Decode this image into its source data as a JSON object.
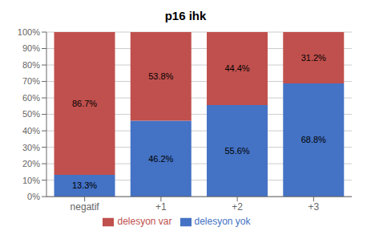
{
  "chart_data": {
    "type": "bar",
    "title": "p16 ihk",
    "categories": [
      "negatif",
      "+1",
      "+2",
      "+3"
    ],
    "series": [
      {
        "name": "delesyon yok",
        "color": "#4472C4",
        "values": [
          13.3,
          46.2,
          55.6,
          68.8
        ],
        "value_labels": [
          "13.3%",
          "46.2%",
          "55.6%",
          "68.8%"
        ]
      },
      {
        "name": "delesyon var",
        "color": "#C0504D",
        "values": [
          86.7,
          53.8,
          44.4,
          31.2
        ],
        "value_labels": [
          "86.7%",
          "53.8%",
          "44.4%",
          "31.2%"
        ]
      }
    ],
    "stacked": true,
    "data_labels": true,
    "ylim": [
      0,
      100
    ],
    "yticks": [
      {
        "value": 0,
        "label": "0%"
      },
      {
        "value": 10,
        "label": "10%"
      },
      {
        "value": 20,
        "label": "20%"
      },
      {
        "value": 30,
        "label": "30%"
      },
      {
        "value": 40,
        "label": "40%"
      },
      {
        "value": 50,
        "label": "50%"
      },
      {
        "value": 60,
        "label": "60%"
      },
      {
        "value": 70,
        "label": "70%"
      },
      {
        "value": 80,
        "label": "80%"
      },
      {
        "value": 90,
        "label": "90%"
      },
      {
        "value": 100,
        "label": "100%"
      }
    ],
    "grid": true,
    "legend": "bottom"
  }
}
